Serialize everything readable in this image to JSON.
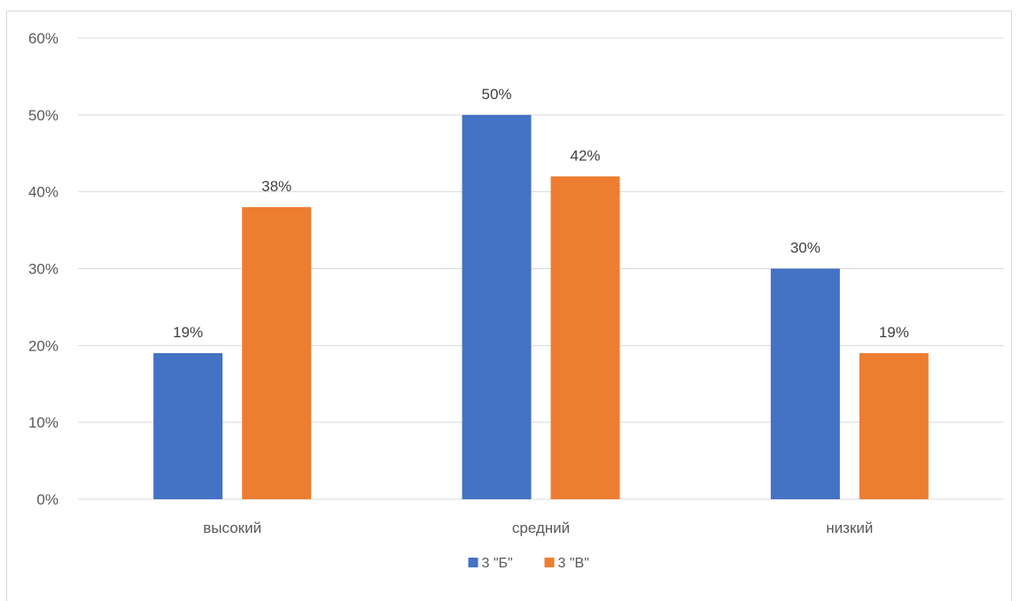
{
  "chart_data": {
    "type": "bar",
    "categories": [
      "высокий",
      "средний",
      "низкий"
    ],
    "series": [
      {
        "name": "3 \"Б\"",
        "values": [
          19,
          50,
          30
        ],
        "labels": [
          "19%",
          "50%",
          "30%"
        ],
        "color": "#4472C4"
      },
      {
        "name": "3 \"В\"",
        "values": [
          38,
          42,
          19
        ],
        "labels": [
          "38%",
          "42%",
          "19%"
        ],
        "color": "#ED7D31"
      }
    ],
    "ylim": [
      0,
      60
    ],
    "yticks": [
      0,
      10,
      20,
      30,
      40,
      50,
      60
    ],
    "ytick_labels": [
      "0%",
      "10%",
      "20%",
      "30%",
      "40%",
      "50%",
      "60%"
    ],
    "grid": true,
    "legend_position": "bottom-center",
    "gridline_color": "#d9d9d9"
  }
}
